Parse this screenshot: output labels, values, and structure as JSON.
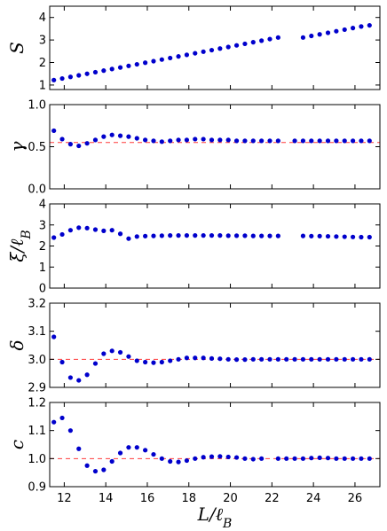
{
  "chart_data": {
    "type": "scatter",
    "x_label": "L/ℓ_B",
    "x_ticks": [
      12,
      14,
      16,
      18,
      20,
      22,
      24,
      26
    ],
    "xlim": [
      11.3,
      27.2
    ],
    "marker_color": "#0000cc",
    "reference_color": "#ff3b3b",
    "panels": [
      {
        "ylabel": "S",
        "ylim": [
          0.8,
          4.5
        ],
        "yticks": [
          1,
          2,
          3,
          4
        ],
        "reference": null,
        "points": [
          [
            11.5,
            1.22
          ],
          [
            11.9,
            1.29
          ],
          [
            12.3,
            1.36
          ],
          [
            12.7,
            1.43
          ],
          [
            13.1,
            1.5
          ],
          [
            13.5,
            1.57
          ],
          [
            13.9,
            1.64
          ],
          [
            14.3,
            1.71
          ],
          [
            14.7,
            1.78
          ],
          [
            15.1,
            1.85
          ],
          [
            15.5,
            1.92
          ],
          [
            15.9,
            1.99
          ],
          [
            16.3,
            2.06
          ],
          [
            16.7,
            2.13
          ],
          [
            17.1,
            2.2
          ],
          [
            17.5,
            2.27
          ],
          [
            17.9,
            2.34
          ],
          [
            18.3,
            2.41
          ],
          [
            18.7,
            2.48
          ],
          [
            19.1,
            2.55
          ],
          [
            19.5,
            2.62
          ],
          [
            19.9,
            2.69
          ],
          [
            20.3,
            2.76
          ],
          [
            20.7,
            2.83
          ],
          [
            21.1,
            2.9
          ],
          [
            21.5,
            2.97
          ],
          [
            21.9,
            3.04
          ],
          [
            22.3,
            3.11
          ],
          [
            23.5,
            3.11
          ],
          [
            23.9,
            3.18
          ],
          [
            24.3,
            3.25
          ],
          [
            24.7,
            3.32
          ],
          [
            25.1,
            3.39
          ],
          [
            25.5,
            3.46
          ],
          [
            25.9,
            3.53
          ],
          [
            26.3,
            3.6
          ],
          [
            26.7,
            3.65
          ]
        ]
      },
      {
        "ylabel": "γ",
        "ylim": [
          0.0,
          1.0
        ],
        "yticks": [
          0.0,
          0.5,
          1.0
        ],
        "reference": 0.55,
        "points": [
          [
            11.5,
            0.69
          ],
          [
            11.9,
            0.59
          ],
          [
            12.3,
            0.53
          ],
          [
            12.7,
            0.51
          ],
          [
            13.1,
            0.54
          ],
          [
            13.5,
            0.58
          ],
          [
            13.9,
            0.62
          ],
          [
            14.3,
            0.64
          ],
          [
            14.7,
            0.63
          ],
          [
            15.1,
            0.62
          ],
          [
            15.5,
            0.6
          ],
          [
            15.9,
            0.58
          ],
          [
            16.3,
            0.57
          ],
          [
            16.7,
            0.56
          ],
          [
            17.1,
            0.57
          ],
          [
            17.5,
            0.58
          ],
          [
            17.9,
            0.58
          ],
          [
            18.3,
            0.59
          ],
          [
            18.7,
            0.59
          ],
          [
            19.1,
            0.58
          ],
          [
            19.5,
            0.58
          ],
          [
            19.9,
            0.58
          ],
          [
            20.3,
            0.57
          ],
          [
            20.7,
            0.57
          ],
          [
            21.1,
            0.57
          ],
          [
            21.5,
            0.57
          ],
          [
            21.9,
            0.57
          ],
          [
            22.3,
            0.57
          ],
          [
            23.1,
            0.57
          ],
          [
            23.5,
            0.57
          ],
          [
            23.9,
            0.57
          ],
          [
            24.3,
            0.57
          ],
          [
            24.7,
            0.57
          ],
          [
            25.1,
            0.57
          ],
          [
            25.5,
            0.57
          ],
          [
            25.9,
            0.57
          ],
          [
            26.3,
            0.57
          ],
          [
            26.7,
            0.57
          ]
        ]
      },
      {
        "ylabel": "ξ/ℓ_B",
        "ylim": [
          0,
          4
        ],
        "yticks": [
          0,
          1,
          2,
          3,
          4
        ],
        "reference": null,
        "points": [
          [
            11.5,
            2.4
          ],
          [
            11.9,
            2.55
          ],
          [
            12.3,
            2.75
          ],
          [
            12.7,
            2.87
          ],
          [
            13.1,
            2.85
          ],
          [
            13.5,
            2.78
          ],
          [
            13.9,
            2.72
          ],
          [
            14.3,
            2.75
          ],
          [
            14.7,
            2.58
          ],
          [
            15.1,
            2.35
          ],
          [
            15.5,
            2.45
          ],
          [
            15.9,
            2.47
          ],
          [
            16.3,
            2.48
          ],
          [
            16.7,
            2.49
          ],
          [
            17.1,
            2.5
          ],
          [
            17.5,
            2.5
          ],
          [
            17.9,
            2.5
          ],
          [
            18.3,
            2.5
          ],
          [
            18.7,
            2.5
          ],
          [
            19.1,
            2.5
          ],
          [
            19.5,
            2.5
          ],
          [
            19.9,
            2.49
          ],
          [
            20.3,
            2.49
          ],
          [
            20.7,
            2.49
          ],
          [
            21.1,
            2.48
          ],
          [
            21.5,
            2.48
          ],
          [
            21.9,
            2.48
          ],
          [
            22.3,
            2.48
          ],
          [
            23.5,
            2.48
          ],
          [
            23.9,
            2.47
          ],
          [
            24.3,
            2.47
          ],
          [
            24.7,
            2.46
          ],
          [
            25.1,
            2.45
          ],
          [
            25.5,
            2.44
          ],
          [
            25.9,
            2.43
          ],
          [
            26.3,
            2.42
          ],
          [
            26.7,
            2.42
          ]
        ]
      },
      {
        "ylabel": "δ",
        "ylim": [
          2.9,
          3.2
        ],
        "yticks": [
          2.9,
          3.0,
          3.1,
          3.2
        ],
        "reference": 3.0,
        "points": [
          [
            11.5,
            3.08
          ],
          [
            11.9,
            2.99
          ],
          [
            12.3,
            2.935
          ],
          [
            12.7,
            2.925
          ],
          [
            13.1,
            2.945
          ],
          [
            13.5,
            2.985
          ],
          [
            13.9,
            3.02
          ],
          [
            14.3,
            3.03
          ],
          [
            14.7,
            3.025
          ],
          [
            15.1,
            3.01
          ],
          [
            15.5,
            2.995
          ],
          [
            15.9,
            2.99
          ],
          [
            16.3,
            2.988
          ],
          [
            16.7,
            2.99
          ],
          [
            17.1,
            2.995
          ],
          [
            17.5,
            3.0
          ],
          [
            17.9,
            3.005
          ],
          [
            18.3,
            3.005
          ],
          [
            18.7,
            3.005
          ],
          [
            19.1,
            3.003
          ],
          [
            19.5,
            3.002
          ],
          [
            19.9,
            3.0
          ],
          [
            20.3,
            2.999
          ],
          [
            20.7,
            2.999
          ],
          [
            21.1,
            3.0
          ],
          [
            21.5,
            3.0
          ],
          [
            21.9,
            3.0
          ],
          [
            22.3,
            3.0
          ],
          [
            22.7,
            3.0
          ],
          [
            23.1,
            3.0
          ],
          [
            23.5,
            3.0
          ],
          [
            23.9,
            3.0
          ],
          [
            24.3,
            3.0
          ],
          [
            24.7,
            3.0
          ],
          [
            25.1,
            3.0
          ],
          [
            25.5,
            3.0
          ],
          [
            25.9,
            3.0
          ],
          [
            26.3,
            3.0
          ],
          [
            26.7,
            3.0
          ]
        ]
      },
      {
        "ylabel": "c",
        "ylim": [
          0.9,
          1.2
        ],
        "yticks": [
          0.9,
          1.0,
          1.1,
          1.2
        ],
        "reference": 1.0,
        "points": [
          [
            11.5,
            1.13
          ],
          [
            11.9,
            1.145
          ],
          [
            12.3,
            1.1
          ],
          [
            12.7,
            1.035
          ],
          [
            13.1,
            0.975
          ],
          [
            13.5,
            0.955
          ],
          [
            13.9,
            0.96
          ],
          [
            14.3,
            0.99
          ],
          [
            14.7,
            1.02
          ],
          [
            15.1,
            1.04
          ],
          [
            15.5,
            1.04
          ],
          [
            15.9,
            1.03
          ],
          [
            16.3,
            1.015
          ],
          [
            16.7,
            1.0
          ],
          [
            17.1,
            0.99
          ],
          [
            17.5,
            0.988
          ],
          [
            17.9,
            0.993
          ],
          [
            18.3,
            1.0
          ],
          [
            18.7,
            1.005
          ],
          [
            19.1,
            1.007
          ],
          [
            19.5,
            1.008
          ],
          [
            19.9,
            1.006
          ],
          [
            20.3,
            1.004
          ],
          [
            20.7,
            1.0
          ],
          [
            21.1,
            0.998
          ],
          [
            21.5,
            1.0
          ],
          [
            22.3,
            1.0
          ],
          [
            22.7,
            1.0
          ],
          [
            23.1,
            1.0
          ],
          [
            23.5,
            1.0
          ],
          [
            23.9,
            1.002
          ],
          [
            24.3,
            1.003
          ],
          [
            24.7,
            1.002
          ],
          [
            25.1,
            1.0
          ],
          [
            25.5,
            1.0
          ],
          [
            25.9,
            1.0
          ],
          [
            26.3,
            1.0
          ],
          [
            26.7,
            1.0
          ]
        ]
      }
    ]
  }
}
